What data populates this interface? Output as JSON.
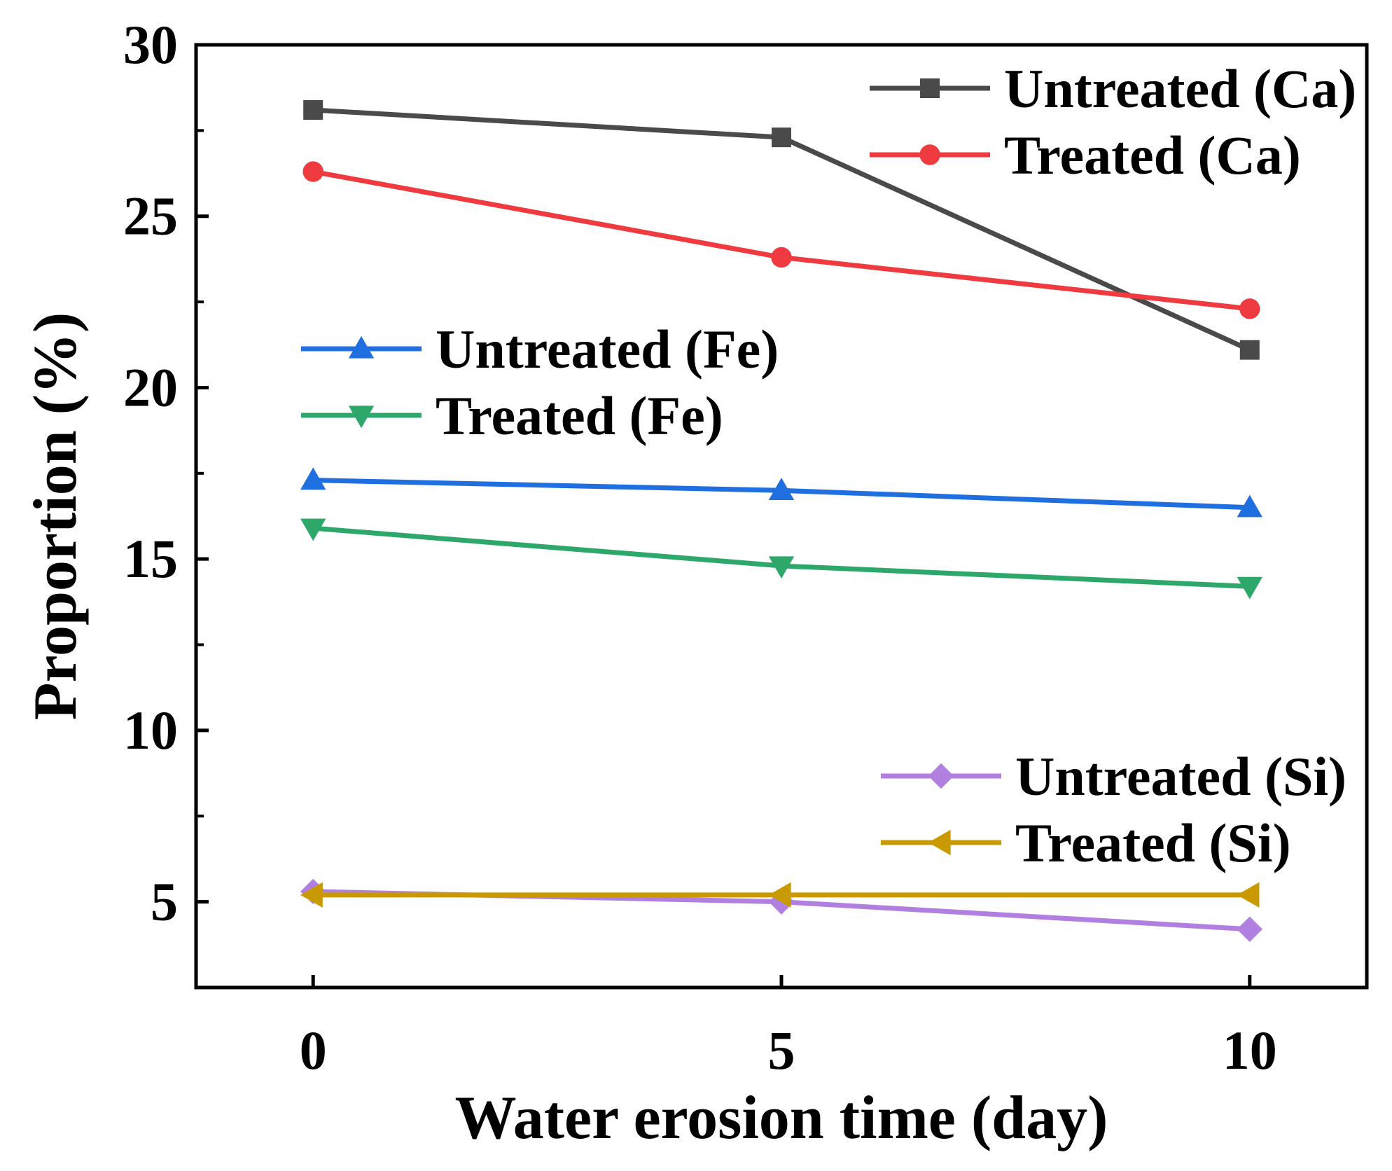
{
  "chart_data": {
    "type": "line",
    "title": "",
    "xlabel": "Water erosion time (day)",
    "ylabel": "Proportion (%)",
    "x": [
      0,
      5,
      10
    ],
    "xlim": [
      -1.25,
      11.25
    ],
    "ylim": [
      2.5,
      30
    ],
    "x_ticks": [
      0,
      5,
      10
    ],
    "x_tick_labels": [
      "0",
      "5",
      "10"
    ],
    "y_ticks": [
      5,
      10,
      15,
      20,
      25,
      30
    ],
    "y_tick_labels": [
      "5",
      "10",
      "15",
      "20",
      "25",
      "30"
    ],
    "grid": false,
    "series": [
      {
        "name": "Untreated (Ca)",
        "marker": "square",
        "color": "#4a4a4a",
        "values": [
          28.1,
          27.3,
          21.1
        ]
      },
      {
        "name": "Treated (Ca)",
        "marker": "circle",
        "color": "#ef3b3f",
        "values": [
          26.3,
          23.8,
          22.3
        ]
      },
      {
        "name": "Untreated (Fe)",
        "marker": "triangle-up",
        "color": "#1f6fe0",
        "values": [
          17.3,
          17.0,
          16.5
        ]
      },
      {
        "name": "Treated (Fe)",
        "marker": "triangle-down",
        "color": "#2ea86a",
        "values": [
          15.9,
          14.8,
          14.2
        ]
      },
      {
        "name": "Untreated (Si)",
        "marker": "diamond",
        "color": "#b07fe0",
        "values": [
          5.3,
          5.0,
          4.2
        ]
      },
      {
        "name": "Treated (Si)",
        "marker": "triangle-left",
        "color": "#c99a00",
        "values": [
          5.2,
          5.2,
          5.2
        ]
      }
    ],
    "legend_groups": [
      {
        "placement": "top-right",
        "series": [
          0,
          1
        ]
      },
      {
        "placement": "upper-left",
        "series": [
          2,
          3
        ]
      },
      {
        "placement": "bottom-right",
        "series": [
          4,
          5
        ]
      }
    ]
  }
}
